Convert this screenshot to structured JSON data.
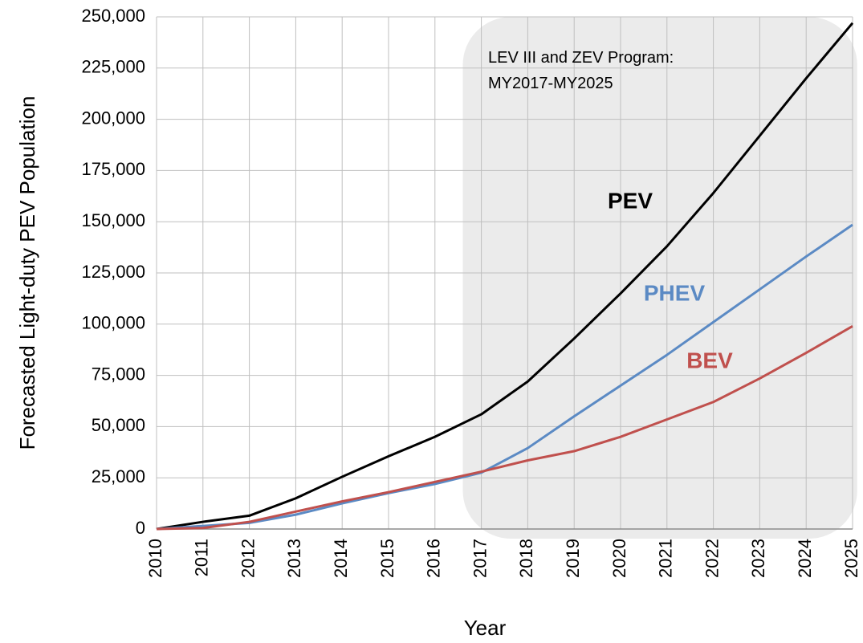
{
  "chart_data": {
    "type": "line",
    "x_label": "Year",
    "y_label": "Forecasted Light-duty PEV Population",
    "annotation": [
      "LEV III and ZEV Program:",
      "MY2017-MY2025"
    ],
    "highlight": {
      "x": [
        2016.6,
        2025.1
      ],
      "color": "#ebebeb"
    },
    "x": [
      2010,
      2011,
      2012,
      2013,
      2014,
      2015,
      2016,
      2017,
      2018,
      2019,
      2020,
      2021,
      2022,
      2023,
      2024,
      2025
    ],
    "series": [
      {
        "name": "PEV",
        "color": "#000000",
        "values": [
          0,
          3500,
          6500,
          15000,
          25500,
          35500,
          45000,
          56000,
          72000,
          93000,
          115000,
          138000,
          164000,
          192000,
          220000,
          247000
        ]
      },
      {
        "name": "PHEV",
        "color": "#5b8ac4",
        "values": [
          0,
          1500,
          3000,
          7000,
          12500,
          17500,
          22000,
          27500,
          39500,
          55000,
          70000,
          85000,
          101000,
          117000,
          133000,
          148500
        ]
      },
      {
        "name": "BEV",
        "color": "#c0504d",
        "values": [
          0,
          500,
          3500,
          8500,
          13500,
          18000,
          23000,
          28000,
          33500,
          38000,
          45000,
          53500,
          62000,
          73500,
          86000,
          99000
        ]
      }
    ],
    "xlim": [
      2010,
      2025
    ],
    "xticks": [
      2010,
      2011,
      2012,
      2013,
      2014,
      2015,
      2016,
      2017,
      2018,
      2019,
      2020,
      2021,
      2022,
      2023,
      2024,
      2025
    ],
    "ylim": [
      0,
      250000
    ],
    "yticks": [
      0,
      {
        "value": 25000,
        "label": "25,000"
      },
      {
        "value": 50000,
        "label": "50,000"
      },
      {
        "value": 75000,
        "label": "75,000"
      },
      {
        "value": 100000,
        "label": "100,000"
      },
      {
        "value": 125000,
        "label": "125,000"
      },
      {
        "value": 150000,
        "label": "150,000"
      },
      {
        "value": 175000,
        "label": "175,000"
      },
      {
        "value": 200000,
        "label": "200,000"
      },
      {
        "value": 225000,
        "label": "225,000"
      },
      {
        "value": 250000,
        "label": "250,000"
      }
    ],
    "grid": true
  }
}
